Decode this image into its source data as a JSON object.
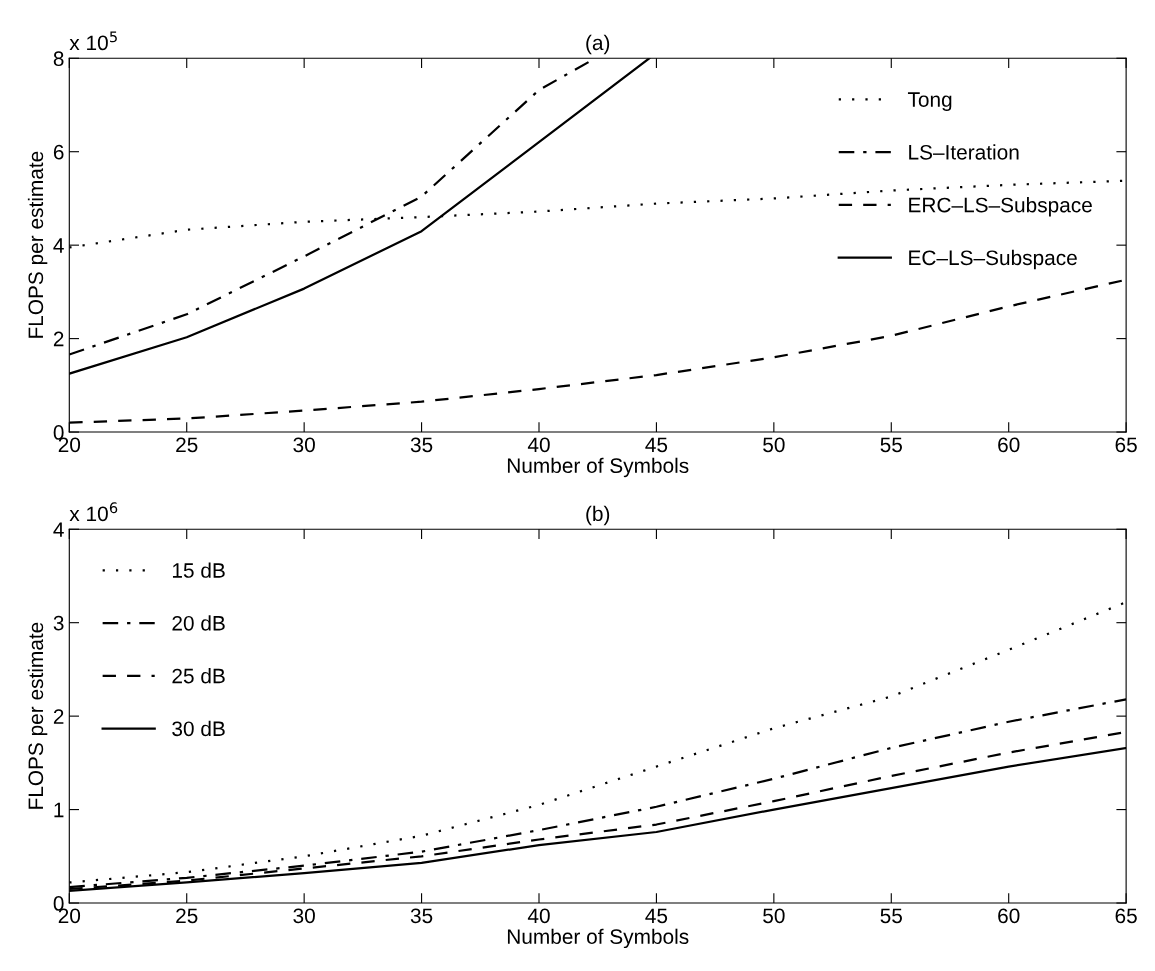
{
  "chart_data": [
    {
      "type": "line",
      "title": "(a)",
      "xlabel": "Number of Symbols",
      "ylabel": "FLOPS per estimate",
      "annotations": [
        "x 10$^{5}$"
      ],
      "xlim": [
        20,
        65
      ],
      "xticks": [
        20,
        25,
        30,
        35,
        40,
        45,
        50,
        55,
        60,
        65
      ],
      "ylim": [
        0,
        8
      ],
      "yticks": [
        0,
        2,
        4,
        6,
        8
      ],
      "grid": false,
      "legend": "top right",
      "marker": "none",
      "series": [
        {
          "name": "Tong",
          "color": "#000000",
          "line_style": "dotted",
          "x": [
            20,
            25,
            30,
            35,
            40,
            45,
            50,
            55,
            60,
            65
          ],
          "values": [
            3.95,
            4.33,
            4.5,
            4.6,
            4.72,
            4.89,
            5.0,
            5.17,
            5.29,
            5.38
          ]
        },
        {
          "name": "LS–Iteration",
          "color": "#000000",
          "line_style": "dashdot",
          "x": [
            20,
            25,
            30,
            35,
            40,
            42.4
          ],
          "values": [
            1.66,
            2.52,
            3.76,
            5.04,
            7.32,
            8.0
          ]
        },
        {
          "name": "ERC–LS–Subspace",
          "color": "#000000",
          "line_style": "dashed",
          "x": [
            20,
            25,
            30,
            35,
            40,
            45,
            50,
            55,
            60,
            65
          ],
          "values": [
            0.2,
            0.29,
            0.46,
            0.65,
            0.92,
            1.22,
            1.6,
            2.06,
            2.69,
            3.26
          ]
        },
        {
          "name": "EC–LS–Subspace",
          "color": "#000000",
          "line_style": "solid",
          "x": [
            20,
            25,
            30,
            35,
            44.7
          ],
          "values": [
            1.25,
            2.03,
            3.07,
            4.3,
            8.0
          ]
        }
      ]
    },
    {
      "type": "line",
      "title": "(b)",
      "xlabel": "Number of Symbols",
      "ylabel": "FLOPS per estimate",
      "annotations": [
        "x 10$^{6}$"
      ],
      "xlim": [
        20,
        65
      ],
      "xticks": [
        20,
        25,
        30,
        35,
        40,
        45,
        50,
        55,
        60,
        65
      ],
      "ylim": [
        0,
        4
      ],
      "yticks": [
        0,
        1,
        2,
        3,
        4
      ],
      "grid": false,
      "legend": "top left",
      "marker": "none",
      "series": [
        {
          "name": "15 dB",
          "color": "#000000",
          "line_style": "dotted",
          "x": [
            20,
            25,
            30,
            35,
            40,
            45,
            50,
            55,
            60,
            65
          ],
          "values": [
            0.22,
            0.33,
            0.5,
            0.72,
            1.05,
            1.46,
            1.87,
            2.21,
            2.71,
            3.22
          ]
        },
        {
          "name": "20 dB",
          "color": "#000000",
          "line_style": "dashdot",
          "x": [
            20,
            25,
            30,
            35,
            40,
            45,
            50,
            55,
            60,
            65
          ],
          "values": [
            0.17,
            0.27,
            0.4,
            0.55,
            0.78,
            1.03,
            1.33,
            1.66,
            1.94,
            2.18
          ]
        },
        {
          "name": "25 dB",
          "color": "#000000",
          "line_style": "dashed",
          "x": [
            20,
            25,
            30,
            35,
            40,
            45,
            50,
            55,
            60,
            65
          ],
          "values": [
            0.15,
            0.24,
            0.37,
            0.5,
            0.68,
            0.84,
            1.09,
            1.36,
            1.61,
            1.83
          ]
        },
        {
          "name": "30 dB",
          "color": "#000000",
          "line_style": "solid",
          "x": [
            20,
            25,
            30,
            35,
            40,
            45,
            50,
            55,
            60,
            65
          ],
          "values": [
            0.13,
            0.22,
            0.32,
            0.43,
            0.62,
            0.76,
            1.0,
            1.23,
            1.46,
            1.66
          ]
        }
      ]
    }
  ]
}
